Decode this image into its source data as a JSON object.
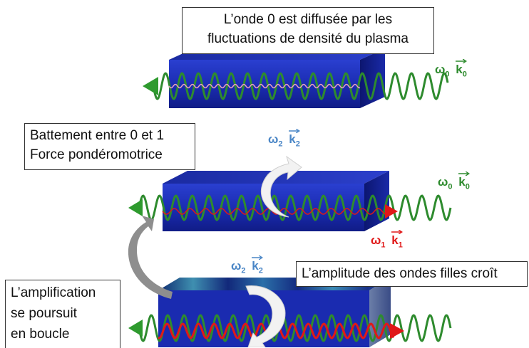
{
  "captions": {
    "top_line1": "L’onde 0 est diffusée par les",
    "top_line2": "fluctuations de densité du plasma",
    "mid_line1": "Battement entre 0 et 1",
    "mid_line2": "Force pondéromotrice",
    "right": "L’amplitude des ondes filles croît",
    "left_line1": "L’amplification",
    "left_line2": "se poursuit",
    "left_line3": "en boucle"
  },
  "wave_labels": [
    {
      "id": "w0-top",
      "omega": "ω",
      "omega_sub": "0",
      "k": "k",
      "k_sub": "0",
      "color": "#2e8b2e"
    },
    {
      "id": "w2-mid",
      "omega": "ω",
      "omega_sub": "2",
      "k": "k",
      "k_sub": "2",
      "color": "#4a86c6"
    },
    {
      "id": "w0-mid",
      "omega": "ω",
      "omega_sub": "0",
      "k": "k",
      "k_sub": "0",
      "color": "#2e8b2e"
    },
    {
      "id": "w1-mid",
      "omega": "ω",
      "omega_sub": "1",
      "k": "k",
      "k_sub": "1",
      "color": "#e01818"
    },
    {
      "id": "w2-bot",
      "omega": "ω",
      "omega_sub": "2",
      "k": "k",
      "k_sub": "2",
      "color": "#4a86c6"
    }
  ],
  "colors": {
    "pump_wave": "#2e8b2e",
    "scattered_wave": "#e01818",
    "plasma_block": "#1a2fb0",
    "curved_arrow": "#ffffff",
    "loop_arrow": "#888888"
  }
}
